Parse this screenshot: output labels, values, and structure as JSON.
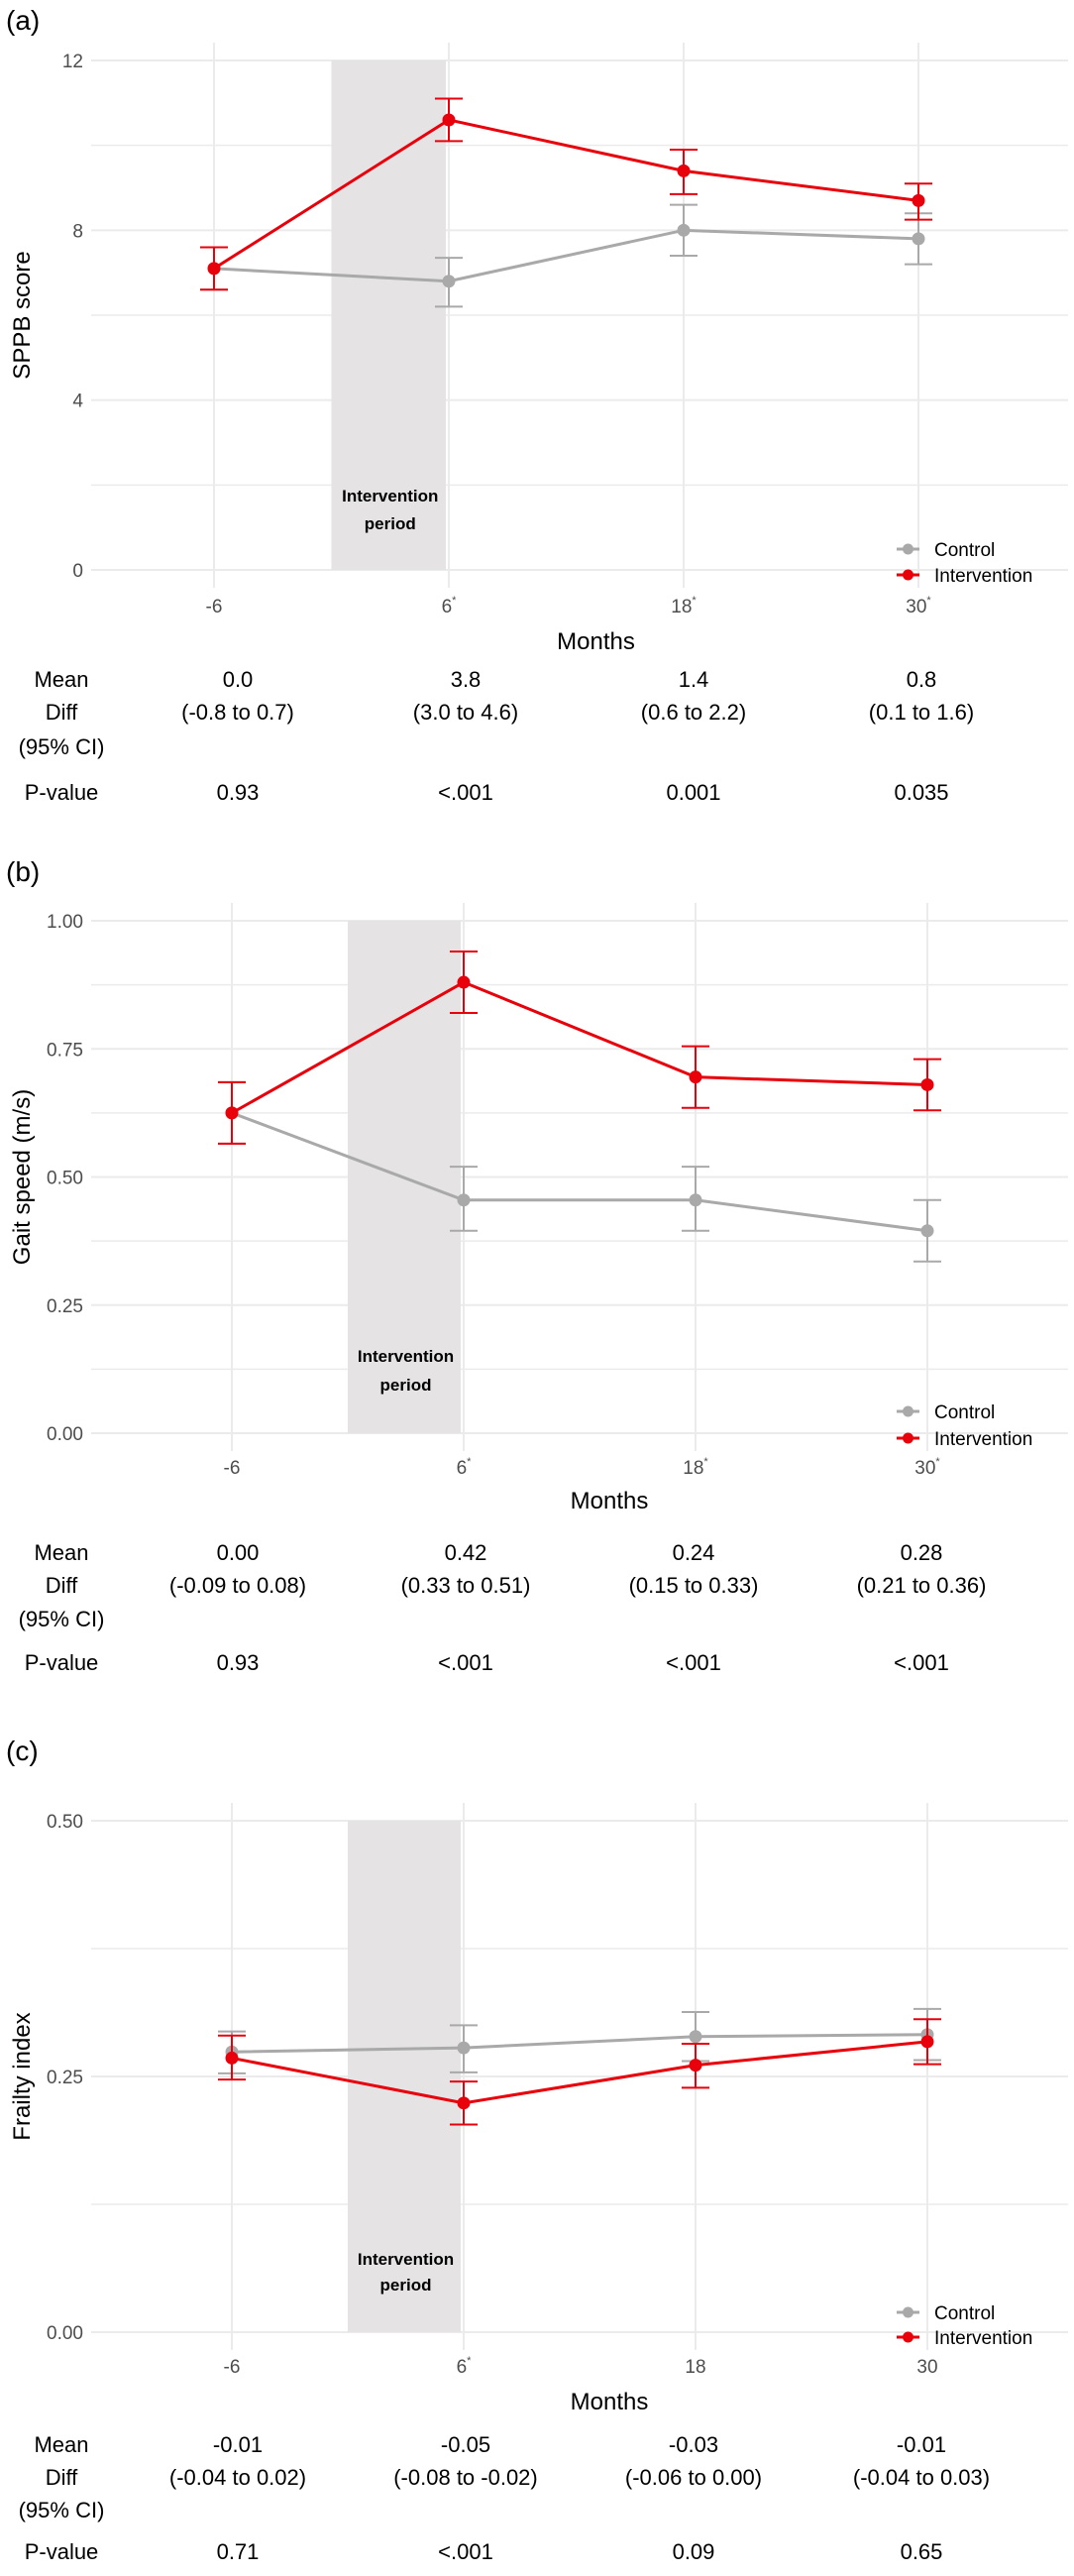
{
  "colors": {
    "control": "#a9a9a9",
    "intervention": "#e8000b",
    "shade": "#e5e3e4",
    "grid": "#ebebeb"
  },
  "chart_data": [
    {
      "type": "line",
      "panel_label": "(a)",
      "xlabel": "Months",
      "ylabel": "SPPB score",
      "ylim": [
        0,
        12
      ],
      "yticks": [
        {
          "value": 0,
          "label": "0"
        },
        {
          "value": 4,
          "label": "4"
        },
        {
          "value": 8,
          "label": "8"
        },
        {
          "value": 12,
          "label": "12"
        }
      ],
      "yminor": [
        2,
        6,
        10
      ],
      "x": [
        -6,
        6,
        18,
        30
      ],
      "xtick_labels": [
        {
          "label": "-6",
          "mark": ""
        },
        {
          "label": "6",
          "mark": "*"
        },
        {
          "label": "18",
          "mark": "*"
        },
        {
          "label": "30",
          "mark": "*"
        }
      ],
      "shade": {
        "from": 0,
        "to": 6,
        "ymax": 12,
        "label_line1": "Intervention",
        "label_line2": "period"
      },
      "legend": {
        "position": "bottom-right",
        "entries": [
          "Control",
          "Intervention"
        ]
      },
      "series": [
        {
          "name": "Control",
          "values": [
            7.1,
            6.8,
            8.0,
            7.8
          ],
          "lower": [
            6.6,
            6.2,
            7.4,
            7.2
          ],
          "upper": [
            7.6,
            7.35,
            8.6,
            8.4
          ]
        },
        {
          "name": "Intervention",
          "values": [
            7.1,
            10.6,
            9.4,
            8.7
          ],
          "lower": [
            6.6,
            10.1,
            8.85,
            8.25
          ],
          "upper": [
            7.6,
            11.1,
            9.9,
            9.1
          ]
        }
      ],
      "table": {
        "mean_label": "Mean",
        "diff_label": "Diff",
        "ci_label": "(95% CI)",
        "p_label": "P-value",
        "mean": [
          "0.0",
          "3.8",
          "1.4",
          "0.8"
        ],
        "ci": [
          "(-0.8 to 0.7)",
          "(3.0 to 4.6)",
          "(0.6 to 2.2)",
          "(0.1 to 1.6)"
        ],
        "p": [
          "0.93",
          "<.001",
          "0.001",
          "0.035"
        ]
      }
    },
    {
      "type": "line",
      "panel_label": "(b)",
      "xlabel": "Months",
      "ylabel": "Gait speed (m/s)",
      "ylim": [
        0,
        1
      ],
      "yticks": [
        {
          "value": 0,
          "label": "0.00"
        },
        {
          "value": 0.25,
          "label": "0.25"
        },
        {
          "value": 0.5,
          "label": "0.50"
        },
        {
          "value": 0.75,
          "label": "0.75"
        },
        {
          "value": 1,
          "label": "1.00"
        }
      ],
      "yminor": [
        0.125,
        0.375,
        0.625,
        0.875
      ],
      "x": [
        -6,
        6,
        18,
        30
      ],
      "xtick_labels": [
        {
          "label": "-6",
          "mark": ""
        },
        {
          "label": "6",
          "mark": "*"
        },
        {
          "label": "18",
          "mark": "*"
        },
        {
          "label": "30",
          "mark": "*"
        }
      ],
      "shade": {
        "from": 0,
        "to": 6,
        "ymax": 1,
        "label_line1": "Intervention",
        "label_line2": "period"
      },
      "legend": {
        "position": "bottom-right",
        "entries": [
          "Control",
          "Intervention"
        ]
      },
      "series": [
        {
          "name": "Control",
          "values": [
            0.625,
            0.455,
            0.455,
            0.395
          ],
          "lower": [
            0.565,
            0.395,
            0.395,
            0.335
          ],
          "upper": [
            0.685,
            0.52,
            0.52,
            0.455
          ]
        },
        {
          "name": "Intervention",
          "values": [
            0.625,
            0.88,
            0.695,
            0.68
          ],
          "lower": [
            0.565,
            0.82,
            0.635,
            0.63
          ],
          "upper": [
            0.685,
            0.94,
            0.755,
            0.73
          ]
        }
      ],
      "table": {
        "mean_label": "Mean",
        "diff_label": "Diff",
        "ci_label": "(95% CI)",
        "p_label": "P-value",
        "mean": [
          "0.00",
          "0.42",
          "0.24",
          "0.28"
        ],
        "ci": [
          "(-0.09 to 0.08)",
          "(0.33 to 0.51)",
          "(0.15 to 0.33)",
          "(0.21 to 0.36)"
        ],
        "p": [
          "0.93",
          "<.001",
          "<.001",
          "<.001"
        ]
      }
    },
    {
      "type": "line",
      "panel_label": "(c)",
      "xlabel": "Months",
      "ylabel": "Frailty index",
      "ylim": [
        0,
        0.5
      ],
      "yticks": [
        {
          "value": 0,
          "label": "0.00"
        },
        {
          "value": 0.25,
          "label": "0.25"
        },
        {
          "value": 0.5,
          "label": "0.50"
        }
      ],
      "yminor": [
        0.125,
        0.375
      ],
      "x": [
        -6,
        6,
        18,
        30
      ],
      "xtick_labels": [
        {
          "label": "-6",
          "mark": ""
        },
        {
          "label": "6",
          "mark": "*"
        },
        {
          "label": "18",
          "mark": ""
        },
        {
          "label": "30",
          "mark": ""
        }
      ],
      "shade": {
        "from": 0,
        "to": 6,
        "ymax": 0.5,
        "label_line1": "Intervention",
        "label_line2": "period"
      },
      "legend": {
        "position": "bottom-right",
        "entries": [
          "Control",
          "Intervention"
        ]
      },
      "series": [
        {
          "name": "Control",
          "values": [
            0.274,
            0.278,
            0.289,
            0.291
          ],
          "lower": [
            0.253,
            0.254,
            0.265,
            0.266
          ],
          "upper": [
            0.294,
            0.3,
            0.313,
            0.316
          ]
        },
        {
          "name": "Intervention",
          "values": [
            0.268,
            0.224,
            0.261,
            0.284
          ],
          "lower": [
            0.247,
            0.203,
            0.239,
            0.262
          ],
          "upper": [
            0.29,
            0.245,
            0.282,
            0.306
          ]
        }
      ],
      "table": {
        "mean_label": "Mean",
        "diff_label": "Diff",
        "ci_label": "(95% CI)",
        "p_label": "P-value",
        "mean": [
          "-0.01",
          "-0.05",
          "-0.03",
          "-0.01"
        ],
        "ci": [
          "(-0.04 to 0.02)",
          "(-0.08 to -0.02)",
          "(-0.06 to 0.00)",
          "(-0.04 to 0.03)"
        ],
        "p": [
          "0.71",
          "<.001",
          "0.09",
          "0.65"
        ]
      }
    }
  ]
}
